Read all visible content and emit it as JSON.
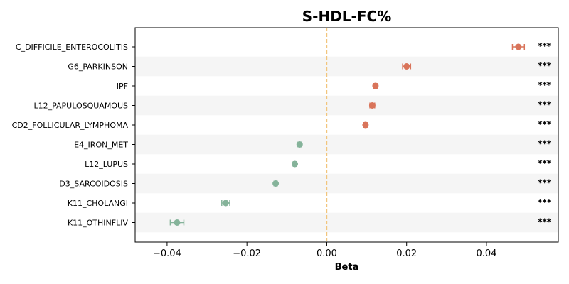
{
  "chart_data": {
    "type": "scatter",
    "title": "S-HDL-FC%",
    "xlabel": "Beta",
    "ylabel": "",
    "xlim": [
      -0.048,
      0.058
    ],
    "xticks": [
      -0.04,
      -0.02,
      0.0,
      0.02,
      0.04
    ],
    "xtick_labels": [
      "−0.04",
      "−0.02",
      "0.00",
      "0.02",
      "0.04"
    ],
    "reference_line": 0.0,
    "grid": false,
    "alternating_row_shading": true,
    "categories": [
      "C_DIFFICILE_ENTEROCOLITIS",
      "G6_PARKINSON",
      "IPF",
      "L12_PAPULOSQUAMOUS",
      "CD2_FOLLICULAR_LYMPHOMA",
      "E4_IRON_MET",
      "L12_LUPUS",
      "D3_SARCOIDOSIS",
      "K11_CHOLANGI",
      "K11_OTHINFLIV"
    ],
    "beta": [
      0.048,
      0.02,
      0.0122,
      0.0114,
      0.0097,
      -0.0068,
      -0.008,
      -0.0128,
      -0.0253,
      -0.0375
    ],
    "ci_low": [
      0.0465,
      0.019,
      0.0118,
      0.0108,
      0.0093,
      -0.0072,
      -0.0084,
      -0.0132,
      -0.0263,
      -0.0392
    ],
    "ci_high": [
      0.0495,
      0.021,
      0.0126,
      0.012,
      0.0101,
      -0.0064,
      -0.0076,
      -0.0124,
      -0.0243,
      -0.0358
    ],
    "significance": [
      "***",
      "***",
      "***",
      "***",
      "***",
      "***",
      "***",
      "***",
      "***",
      "***"
    ],
    "colors": {
      "positive": "#d9745a",
      "negative": "#85b39a",
      "reference_line": "#f2c57c",
      "row_shade": "#f5f5f5"
    }
  }
}
